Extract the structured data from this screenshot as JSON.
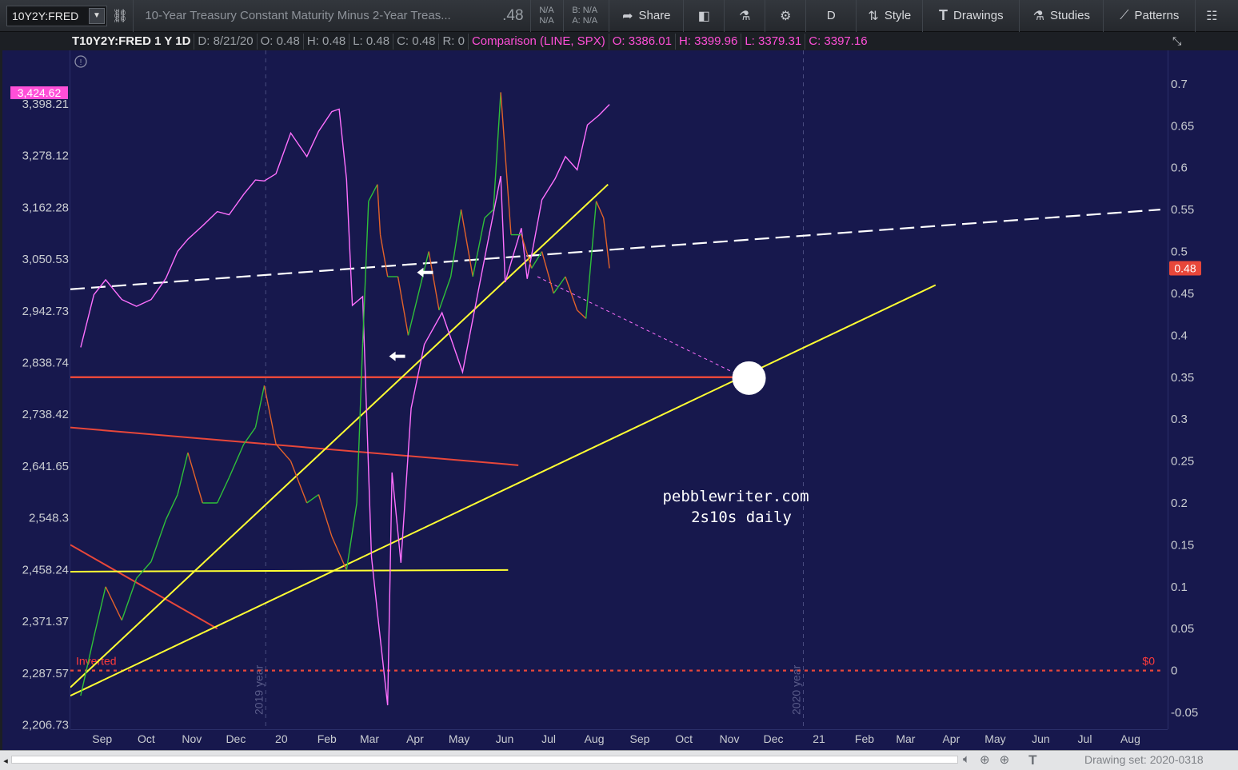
{
  "toolbar": {
    "symbol": "10Y2Y:FRED",
    "description": "10-Year Treasury Constant Maturity Minus 2-Year Treas...",
    "last": ".48",
    "na_top": "N/A",
    "na_bottom": "N/A",
    "bid": "B: N/A",
    "ask": "A: N/A",
    "share_label": "Share",
    "period_label": "D",
    "style_label": "Style",
    "drawings_label": "Drawings",
    "studies_label": "Studies",
    "patterns_label": "Patterns",
    "icons": [
      "link-icon",
      "share-icon",
      "screenshot-icon",
      "flask-icon",
      "gear-icon",
      "style-icon",
      "text-icon",
      "studies-flask-icon",
      "patterns-icon",
      "grid-icon"
    ]
  },
  "infobar": {
    "symbol": "T10Y2Y:FRED 1 Y 1D",
    "date": "D: 8/21/20",
    "open": "O: 0.48",
    "high": "H: 0.48",
    "low": "L: 0.48",
    "close": "C: 0.48",
    "range": "R: 0",
    "comparison": "Comparison (LINE, SPX)",
    "cmp_open": "O: 3386.01",
    "cmp_high": "H: 3399.96",
    "cmp_low": "L: 3379.31",
    "cmp_close": "C: 3397.16"
  },
  "chart_data": {
    "type": "line",
    "title": "",
    "annotation": [
      "pebblewriter.com",
      "2s10s daily"
    ],
    "x_labels": [
      "Sep",
      "Oct",
      "Nov",
      "Dec",
      "20",
      "Feb",
      "Mar",
      "Apr",
      "May",
      "Jun",
      "Jul",
      "Aug",
      "Sep",
      "Oct",
      "Nov",
      "Dec",
      "21",
      "Feb",
      "Mar",
      "Apr",
      "May",
      "Jun",
      "Jul",
      "Aug"
    ],
    "year_markers": [
      "2019 year",
      "2020 year"
    ],
    "right_axis": {
      "ticks": [
        0.7,
        0.65,
        0.6,
        0.55,
        0.5,
        0.45,
        0.4,
        0.35,
        0.3,
        0.25,
        0.2,
        0.15,
        0.1,
        0.05,
        0,
        -0.05
      ],
      "tick_labels": [
        "0.7",
        "0.65",
        "0.6",
        "0.55",
        "0.5",
        "0.45",
        "0.4",
        "0.35",
        "0.3",
        "0.25",
        "0.2",
        "0.15",
        "0.1",
        "0.05",
        "0",
        "-0.05"
      ],
      "range": [
        -0.07,
        0.74
      ],
      "last_value_label": "0.48"
    },
    "left_axis": {
      "tick_labels": [
        "3,398.21",
        "3,278.12",
        "3,162.28",
        "3,050.53",
        "2,942.73",
        "2,838.74",
        "2,738.42",
        "2,641.65",
        "2,548.3",
        "2,458.24",
        "2,371.37",
        "2,287.57",
        "2,206.73"
      ],
      "scale": "log",
      "last_value_label": "3,424.62"
    },
    "series": [
      {
        "name": "T10Y2Y:FRED",
        "color": "#3fbf3f",
        "points": [
          [
            "2019-08-27",
            -0.03
          ],
          [
            "2019-09-05",
            0.04
          ],
          [
            "2019-09-13",
            0.1
          ],
          [
            "2019-09-24",
            0.06
          ],
          [
            "2019-10-04",
            0.11
          ],
          [
            "2019-10-14",
            0.13
          ],
          [
            "2019-10-24",
            0.18
          ],
          [
            "2019-11-01",
            0.21
          ],
          [
            "2019-11-08",
            0.26
          ],
          [
            "2019-11-18",
            0.2
          ],
          [
            "2019-11-28",
            0.2
          ],
          [
            "2019-12-06",
            0.23
          ],
          [
            "2019-12-16",
            0.27
          ],
          [
            "2019-12-24",
            0.29
          ],
          [
            "2019-12-30",
            0.34
          ],
          [
            "2020-01-07",
            0.27
          ],
          [
            "2020-01-17",
            0.25
          ],
          [
            "2020-01-28",
            0.2
          ],
          [
            "2020-02-05",
            0.21
          ],
          [
            "2020-02-14",
            0.16
          ],
          [
            "2020-02-24",
            0.12
          ],
          [
            "2020-03-02",
            0.2
          ],
          [
            "2020-03-06",
            0.39
          ],
          [
            "2020-03-10",
            0.56
          ],
          [
            "2020-03-16",
            0.58
          ],
          [
            "2020-03-18",
            0.52
          ],
          [
            "2020-03-23",
            0.47
          ],
          [
            "2020-03-30",
            0.47
          ],
          [
            "2020-04-06",
            0.4
          ],
          [
            "2020-04-13",
            0.45
          ],
          [
            "2020-04-20",
            0.5
          ],
          [
            "2020-04-27",
            0.43
          ],
          [
            "2020-05-05",
            0.47
          ],
          [
            "2020-05-12",
            0.55
          ],
          [
            "2020-05-20",
            0.47
          ],
          [
            "2020-05-28",
            0.54
          ],
          [
            "2020-06-03",
            0.55
          ],
          [
            "2020-06-08",
            0.69
          ],
          [
            "2020-06-15",
            0.52
          ],
          [
            "2020-06-22",
            0.52
          ],
          [
            "2020-06-29",
            0.48
          ],
          [
            "2020-07-06",
            0.5
          ],
          [
            "2020-07-14",
            0.45
          ],
          [
            "2020-07-22",
            0.47
          ],
          [
            "2020-07-30",
            0.43
          ],
          [
            "2020-08-05",
            0.42
          ],
          [
            "2020-08-12",
            0.56
          ],
          [
            "2020-08-17",
            0.54
          ],
          [
            "2020-08-21",
            0.48
          ]
        ]
      },
      {
        "name": "SPX",
        "color": "#ff70ff",
        "points": [
          [
            "2019-08-27",
            2869
          ],
          [
            "2019-09-05",
            2976
          ],
          [
            "2019-09-13",
            3007
          ],
          [
            "2019-09-24",
            2966
          ],
          [
            "2019-10-04",
            2952
          ],
          [
            "2019-10-14",
            2966
          ],
          [
            "2019-10-24",
            3010
          ],
          [
            "2019-11-01",
            3067
          ],
          [
            "2019-11-08",
            3093
          ],
          [
            "2019-11-18",
            3122
          ],
          [
            "2019-11-28",
            3153
          ],
          [
            "2019-12-06",
            3146
          ],
          [
            "2019-12-16",
            3191
          ],
          [
            "2019-12-24",
            3223
          ],
          [
            "2019-12-30",
            3221
          ],
          [
            "2020-01-07",
            3237
          ],
          [
            "2020-01-17",
            3330
          ],
          [
            "2020-01-28",
            3276
          ],
          [
            "2020-02-05",
            3334
          ],
          [
            "2020-02-14",
            3380
          ],
          [
            "2020-02-19",
            3386
          ],
          [
            "2020-02-24",
            3225
          ],
          [
            "2020-02-28",
            2954
          ],
          [
            "2020-03-06",
            2972
          ],
          [
            "2020-03-12",
            2480
          ],
          [
            "2020-03-16",
            2386
          ],
          [
            "2020-03-23",
            2237
          ],
          [
            "2020-03-26",
            2630
          ],
          [
            "2020-04-01",
            2470
          ],
          [
            "2020-04-08",
            2750
          ],
          [
            "2020-04-17",
            2875
          ],
          [
            "2020-04-29",
            2939
          ],
          [
            "2020-05-13",
            2820
          ],
          [
            "2020-05-27",
            3036
          ],
          [
            "2020-06-08",
            3232
          ],
          [
            "2020-06-11",
            3002
          ],
          [
            "2020-06-22",
            3117
          ],
          [
            "2020-06-26",
            3009
          ],
          [
            "2020-07-06",
            3179
          ],
          [
            "2020-07-15",
            3226
          ],
          [
            "2020-07-22",
            3276
          ],
          [
            "2020-07-30",
            3246
          ],
          [
            "2020-08-06",
            3349
          ],
          [
            "2020-08-14",
            3372
          ],
          [
            "2020-08-21",
            3397
          ]
        ]
      }
    ],
    "drawings": [
      {
        "kind": "hline",
        "color": "#e8473a",
        "value": 0.35,
        "from": "2019-08-20",
        "to": "2020-12-04"
      },
      {
        "kind": "line",
        "color": "#e8473a",
        "from": [
          "2019-08-20",
          0.29
        ],
        "to": [
          "2020-06-20",
          0.245
        ]
      },
      {
        "kind": "line",
        "color": "#e8473a",
        "from": [
          "2019-08-20",
          0.15
        ],
        "to": [
          "2019-11-28",
          0.05
        ]
      },
      {
        "kind": "line",
        "color": "#e8473a",
        "dashed": true,
        "from": [
          "2019-08-20",
          0.0
        ],
        "to": [
          "2021-08-31",
          0.0
        ],
        "label_left": "Inverted",
        "label_right": "$0"
      },
      {
        "kind": "line",
        "color": "#ffff33",
        "from": [
          "2019-08-20",
          -0.02
        ],
        "to": [
          "2020-08-20",
          0.58
        ]
      },
      {
        "kind": "line",
        "color": "#ffff33",
        "from": [
          "2019-08-20",
          -0.03
        ],
        "to": [
          "2021-03-31",
          0.46
        ]
      },
      {
        "kind": "line",
        "color": "#ffff33",
        "from": [
          "2019-08-20",
          0.118
        ],
        "to": [
          "2020-06-13",
          0.12
        ]
      },
      {
        "kind": "line",
        "color": "#ffffff",
        "dashed": true,
        "from": [
          "2019-08-20",
          0.455
        ],
        "to": [
          "2021-08-31",
          0.55
        ]
      },
      {
        "kind": "line",
        "color": "#ff70ff",
        "dotted": true,
        "from": [
          "2020-07-03",
          0.47
        ],
        "to": [
          "2020-11-20",
          0.35
        ]
      },
      {
        "kind": "circle",
        "color": "#ffffff",
        "at": [
          "2020-11-24",
          0.349
        ]
      },
      {
        "kind": "arrow",
        "color": "#ffffff",
        "at": [
          "2020-04-12",
          0.475
        ],
        "direction": "left"
      },
      {
        "kind": "arrow",
        "color": "#ffffff",
        "at": [
          "2020-03-24",
          0.375
        ],
        "direction": "left"
      }
    ]
  },
  "bottombar": {
    "left_arrow": "◂",
    "drawing_set": "Drawing set: 2020-0318",
    "icons": [
      "sound-icon",
      "crosshair-icon",
      "zoom-icon",
      "text-tool-icon"
    ]
  }
}
